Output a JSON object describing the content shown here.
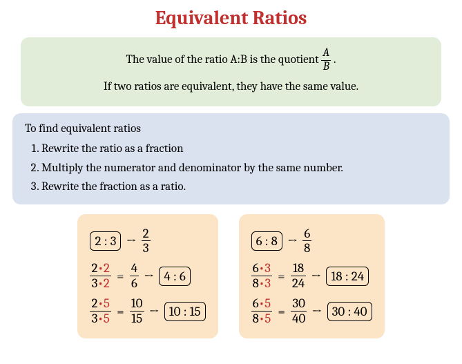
{
  "title": "Equivalent Ratios",
  "green_box": {
    "line1_pre": "The value of the ratio A:B is the quotient",
    "frac_num": "A",
    "frac_den": "B",
    "line1_post": ".",
    "line2": "If two ratios are equivalent, they have the same value."
  },
  "blue_box": {
    "heading": "To find equivalent ratios",
    "step1": "Rewrite the ratio as a fraction",
    "step2": "Multiply the numerator and denominator by the same number.",
    "step3": "Rewrite the fraction as a ratio."
  },
  "example_left": {
    "start_ratio": "2 : 3",
    "start_num": "2",
    "start_den": "3",
    "r1": {
      "a": "2",
      "f": "2",
      "b": "3",
      "rn": "4",
      "rd": "6",
      "ratio": "4 : 6"
    },
    "r2": {
      "a": "2",
      "f": "5",
      "b": "3",
      "rn": "10",
      "rd": "15",
      "ratio": "10 : 15"
    }
  },
  "example_right": {
    "start_ratio": "6 : 8",
    "start_num": "6",
    "start_den": "8",
    "r1": {
      "a": "6",
      "f": "3",
      "b": "8",
      "rn": "18",
      "rd": "24",
      "ratio": "18 : 24"
    },
    "r2": {
      "a": "6",
      "f": "5",
      "b": "8",
      "rn": "30",
      "rd": "40",
      "ratio": "30 : 40"
    }
  },
  "colors": {
    "title": "#c0302e",
    "green_bg": "#e1edd9",
    "blue_bg": "#dbe2ef",
    "orange_bg": "#fce4c6",
    "accent": "#c0302e"
  }
}
